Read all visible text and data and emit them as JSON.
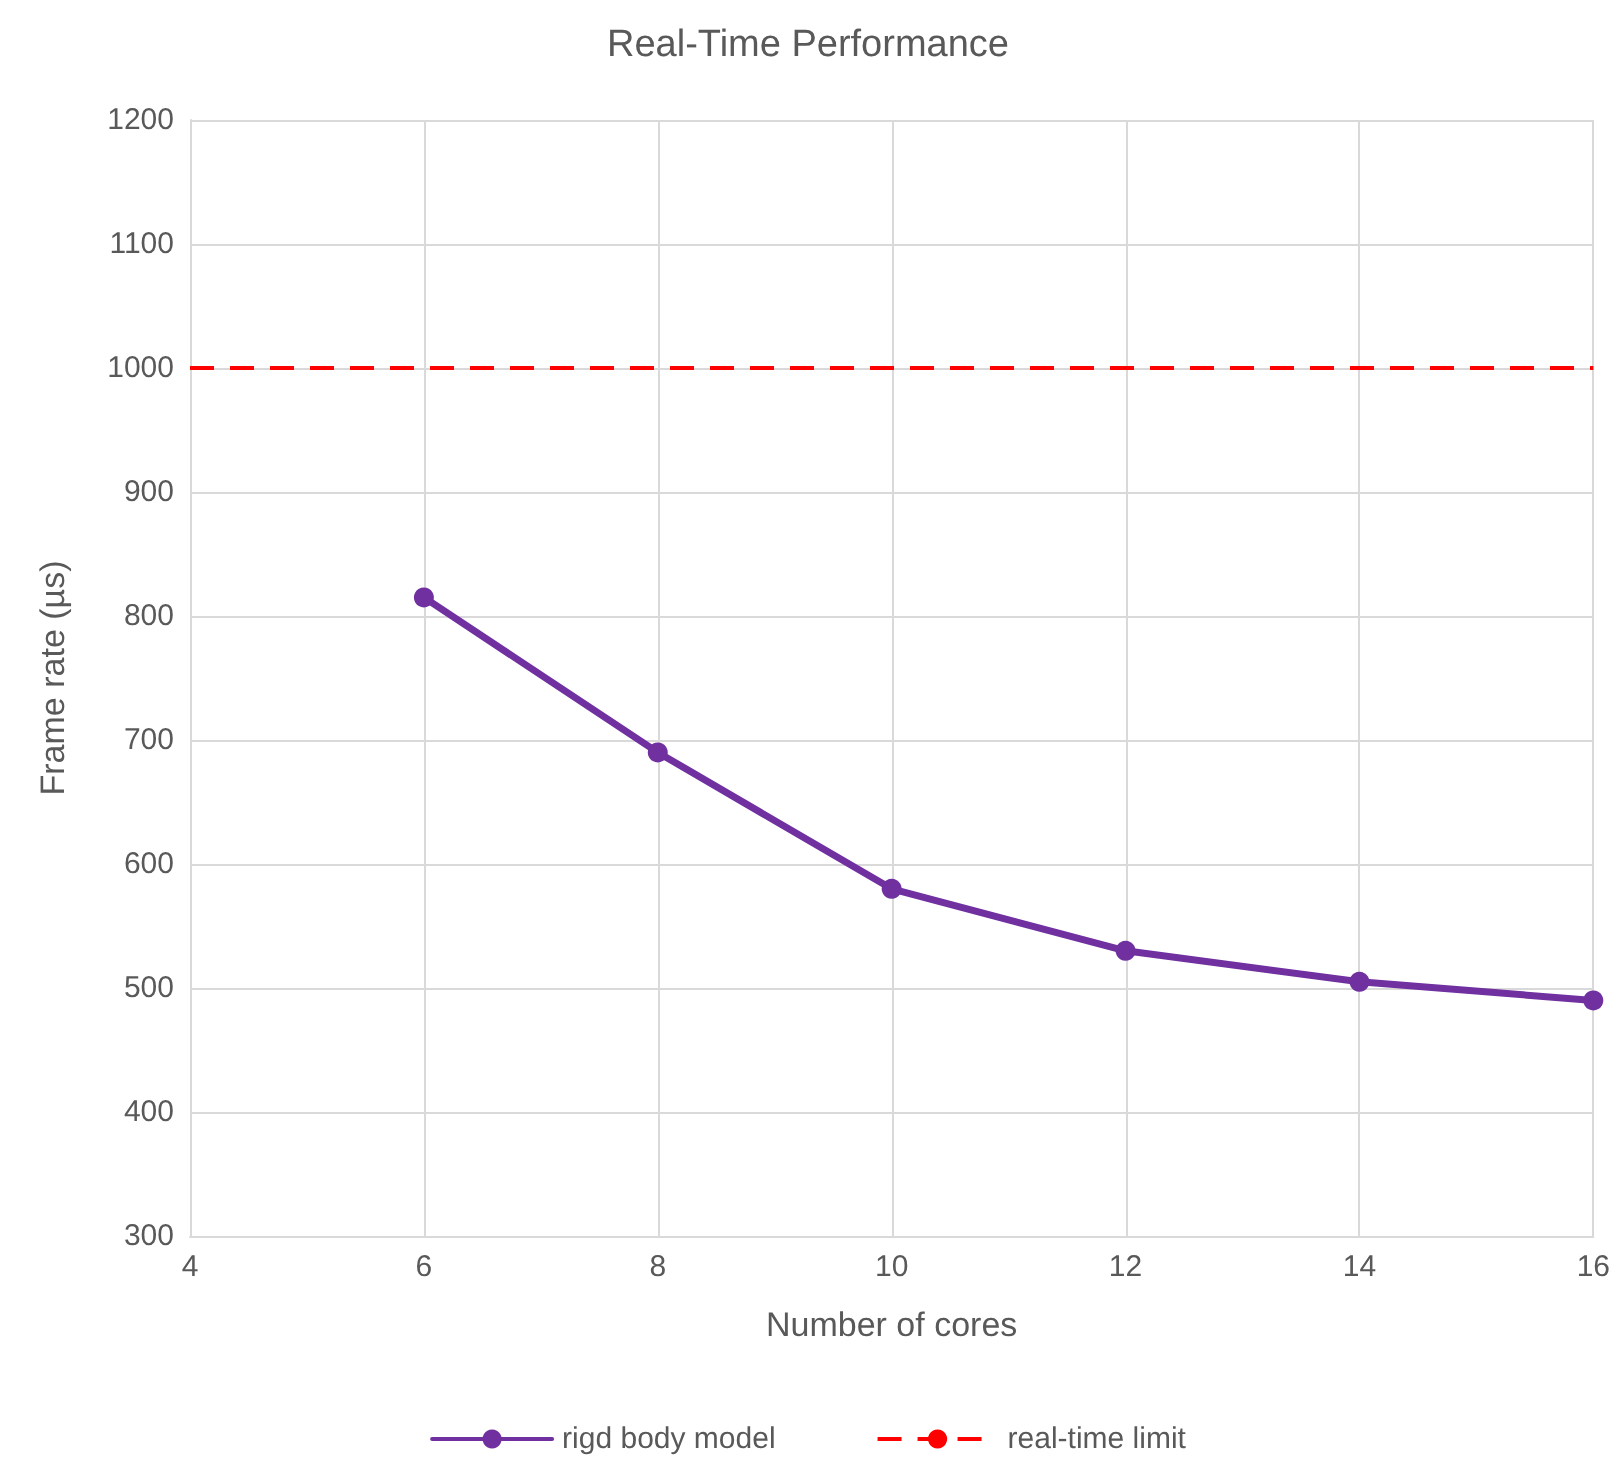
{
  "chart_data": {
    "type": "line",
    "title": "Real-Time Performance",
    "xlabel": "Number of cores",
    "ylabel": "Frame rate (µs)",
    "x": [
      6,
      8,
      10,
      12,
      14,
      16
    ],
    "series": [
      {
        "name": "rigd body model",
        "color": "#7030a0",
        "values": [
          815,
          690,
          580,
          530,
          505,
          490
        ]
      }
    ],
    "xlim": [
      4,
      16
    ],
    "xticks": [
      4,
      6,
      8,
      10,
      12,
      14,
      16
    ],
    "ylim": [
      300,
      1200
    ],
    "yticks": [
      300,
      400,
      500,
      600,
      700,
      800,
      900,
      1000,
      1100,
      1200
    ],
    "ref_lines": [
      {
        "axis": "y",
        "value": 1000,
        "label": "real-time limit",
        "color": "#ff0000",
        "line_style": "dashed"
      }
    ],
    "grid": true,
    "legend": "bottom",
    "marker": "circle",
    "line_style": "solid"
  }
}
